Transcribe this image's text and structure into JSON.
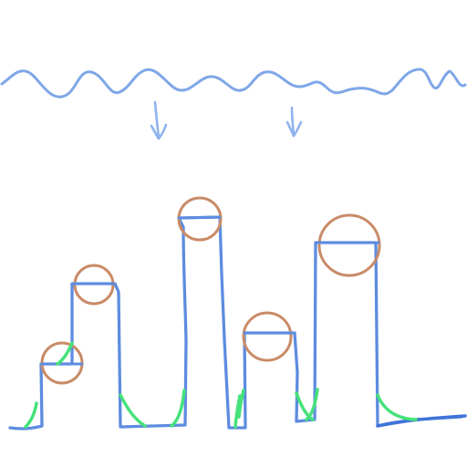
{
  "scene": {
    "background_color": "#ffffff",
    "water_color": "#7fa7e8",
    "arrow_color": "#8fb3ef",
    "terrain_color": "#5d8ce0",
    "ball_color": "#c98b68",
    "grass_color": "#45e27a",
    "ground_color": "#3f73d8",
    "arrow_icon": "arrow-down-icon",
    "ball_icon": "ball-icon",
    "grass_icon": "grass-tuft-icon"
  }
}
